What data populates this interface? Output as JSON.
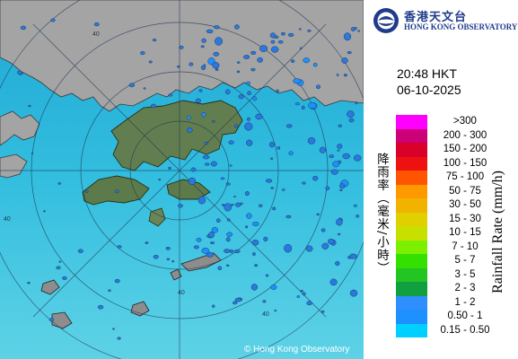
{
  "header": {
    "logo_cn": "香港天文台",
    "logo_en": "HONG KONG OBSERVATORY",
    "time": "20:48 HKT",
    "date": "06-10-2025"
  },
  "legend": {
    "title_cn": "降雨率（毫米/小時）",
    "title_en": "Rainfall Rate (mm/h)",
    "items": [
      {
        "label": ">300",
        "color": "#ff00ff"
      },
      {
        "label": "200 - 300",
        "color": "#cc0077"
      },
      {
        "label": "150 - 200",
        "color": "#d9002a"
      },
      {
        "label": "100 - 150",
        "color": "#ee1111"
      },
      {
        "label": "75 - 100",
        "color": "#ff5500"
      },
      {
        "label": "50 - 75",
        "color": "#ff9900"
      },
      {
        "label": "30 - 50",
        "color": "#f2b200"
      },
      {
        "label": "15 - 30",
        "color": "#e0d000"
      },
      {
        "label": "10 - 15",
        "color": "#c8e000"
      },
      {
        "label": "7 - 10",
        "color": "#7cf000"
      },
      {
        "label": "5 - 7",
        "color": "#33e000"
      },
      {
        "label": "3 - 5",
        "color": "#22c522"
      },
      {
        "label": "2 - 3",
        "color": "#11a040"
      },
      {
        "label": "1 - 2",
        "color": "#2f8fff"
      },
      {
        "label": "0.50 - 1",
        "color": "#1e90ff"
      },
      {
        "label": "0.15 - 0.50",
        "color": "#00d0ff"
      }
    ]
  },
  "map": {
    "copyright": "© Hong Kong Observatory",
    "range_labels": [
      "40",
      "40",
      "40",
      "40"
    ],
    "colors": {
      "sea": "#2db8dc",
      "land": "#9e9e9e",
      "hk_land": "#5e7a4c",
      "grid": "#1f3552",
      "rain": "#1e6fe0"
    }
  }
}
